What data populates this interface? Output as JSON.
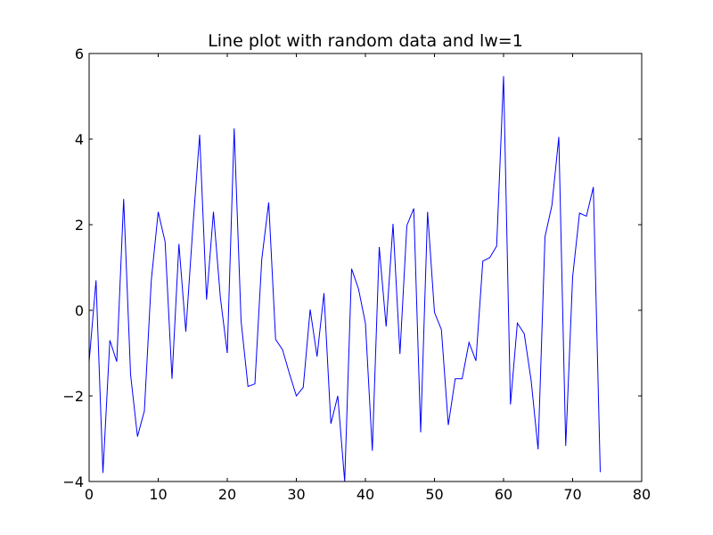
{
  "chart_data": {
    "type": "line",
    "title": "Line plot with random data and lw=1",
    "xlabel": "",
    "ylabel": "",
    "xlim": [
      0,
      80
    ],
    "ylim": [
      -4,
      6
    ],
    "xticks": [
      0,
      10,
      20,
      30,
      40,
      50,
      60,
      70,
      80
    ],
    "yticks": [
      -4,
      -2,
      0,
      2,
      4,
      6
    ],
    "xtick_labels": [
      "0",
      "10",
      "20",
      "30",
      "40",
      "50",
      "60",
      "70",
      "80"
    ],
    "ytick_labels": [
      "−4",
      "−2",
      "0",
      "2",
      "4",
      "6"
    ],
    "grid": false,
    "line_color": "#0000ff",
    "line_width": 1,
    "series": [
      {
        "values": [
          -1.2,
          0.7,
          -3.8,
          -0.7,
          -1.2,
          2.6,
          -1.5,
          -2.95,
          -2.35,
          0.7,
          2.3,
          1.6,
          -1.6,
          1.55,
          -0.5,
          1.9,
          4.1,
          0.25,
          2.3,
          0.3,
          -1.0,
          4.25,
          -0.25,
          -1.78,
          -1.72,
          1.2,
          2.52,
          -0.68,
          -0.92,
          -1.48,
          -2.0,
          -1.8,
          0.02,
          -1.08,
          0.4,
          -2.65,
          -2.0,
          -4.0,
          0.97,
          0.5,
          -0.3,
          -3.28,
          1.48,
          -0.38,
          2.02,
          -1.02,
          1.98,
          2.38,
          -2.85,
          2.3,
          -0.05,
          -0.45,
          -2.68,
          -1.6,
          -1.6,
          -0.75,
          -1.18,
          1.15,
          1.23,
          1.5,
          5.47,
          -2.2,
          -0.3,
          -0.55,
          -1.65,
          -3.25,
          1.72,
          2.45,
          4.05,
          -3.17,
          0.78,
          2.27,
          2.2,
          2.88,
          -3.78
        ]
      }
    ]
  }
}
